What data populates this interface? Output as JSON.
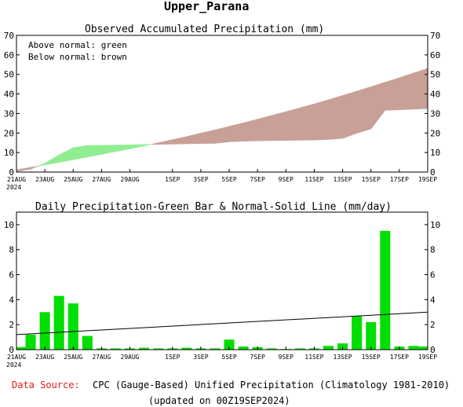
{
  "page": {
    "title": "Upper_Parana",
    "footer_source_label": "Data Source:",
    "footer_source_text": "CPC (Gauge-Based) Unified Precipitation (Climatology 1981-2010)",
    "footer_updated": "(updated on 00Z19SEP2024)"
  },
  "colors": {
    "above_normal": "#90ee90",
    "below_normal": "#c8a097",
    "bar": "#00dd00",
    "footer_label": "#e21b1b"
  },
  "chart_data": [
    {
      "type": "area",
      "title": "Observed Accumulated Precipitation (mm)",
      "legend": [
        "Above normal: green",
        "Below normal: brown"
      ],
      "legend_placement": "top-left",
      "x_tick_labels": [
        "21AUG",
        "23AUG",
        "25AUG",
        "27AUG",
        "29AUG",
        "1SEP",
        "3SEP",
        "5SEP",
        "7SEP",
        "9SEP",
        "11SEP",
        "13SEP",
        "15SEP",
        "17SEP",
        "19SEP"
      ],
      "x_tick_days": [
        0,
        2,
        4,
        6,
        8,
        11,
        13,
        15,
        17,
        19,
        21,
        23,
        25,
        27,
        29
      ],
      "year_label": "2024",
      "xlim": [
        0,
        29
      ],
      "ylim": [
        0,
        70
      ],
      "yticks": [
        0,
        10,
        20,
        30,
        40,
        50,
        60,
        70
      ],
      "series": [
        {
          "name": "observed",
          "x": [
            0,
            1,
            2,
            3,
            4,
            5,
            6,
            7,
            8,
            9,
            10,
            11,
            12,
            13,
            14,
            15,
            16,
            17,
            18,
            19,
            20,
            21,
            22,
            23,
            24,
            25,
            26,
            27,
            28,
            29
          ],
          "values": [
            0.3,
            1.5,
            4.5,
            8.8,
            12.5,
            13.6,
            13.7,
            13.8,
            13.9,
            14.1,
            14.2,
            14.3,
            14.5,
            14.6,
            14.7,
            15.5,
            15.8,
            16.0,
            16.1,
            16.2,
            16.3,
            16.4,
            16.7,
            17.2,
            19.9,
            22.1,
            31.6,
            31.9,
            32.2,
            32.5
          ]
        },
        {
          "name": "normal",
          "x": [
            0,
            1,
            2,
            3,
            4,
            5,
            6,
            7,
            8,
            9,
            10,
            11,
            12,
            13,
            14,
            15,
            16,
            17,
            18,
            19,
            20,
            21,
            22,
            23,
            24,
            25,
            26,
            27,
            28,
            29
          ],
          "values": [
            1.2,
            2.4,
            3.7,
            5.0,
            6.3,
            7.7,
            9.1,
            10.5,
            11.9,
            13.4,
            15.0,
            16.6,
            18.2,
            19.9,
            21.6,
            23.4,
            25.2,
            27.1,
            29.0,
            30.9,
            32.9,
            34.9,
            37.0,
            39.2,
            41.4,
            43.7,
            46.0,
            48.3,
            50.7,
            53.1
          ]
        }
      ]
    },
    {
      "type": "bar",
      "title": "Daily Precipitation-Green Bar & Normal-Solid Line (mm/day)",
      "x_tick_labels": [
        "21AUG",
        "23AUG",
        "25AUG",
        "27AUG",
        "29AUG",
        "1SEP",
        "3SEP",
        "5SEP",
        "7SEP",
        "9SEP",
        "11SEP",
        "13SEP",
        "15SEP",
        "17SEP",
        "19SEP"
      ],
      "x_tick_days": [
        0,
        2,
        4,
        6,
        8,
        11,
        13,
        15,
        17,
        19,
        21,
        23,
        25,
        27,
        29
      ],
      "year_label": "2024",
      "xlim": [
        0,
        29
      ],
      "ylim": [
        0,
        11
      ],
      "yticks": [
        0,
        2,
        4,
        6,
        8,
        10
      ],
      "series": [
        {
          "name": "daily",
          "x": [
            0,
            1,
            2,
            3,
            4,
            5,
            6,
            7,
            8,
            9,
            10,
            11,
            12,
            13,
            14,
            15,
            16,
            17,
            18,
            19,
            20,
            21,
            22,
            23,
            24,
            25,
            26,
            27,
            28,
            29
          ],
          "values": [
            0.2,
            1.2,
            3.0,
            4.3,
            3.7,
            1.1,
            0.1,
            0.1,
            0.1,
            0.15,
            0.1,
            0.1,
            0.15,
            0.1,
            0.1,
            0.8,
            0.25,
            0.2,
            0.1,
            0.05,
            0.1,
            0.1,
            0.3,
            0.5,
            2.7,
            2.2,
            9.5,
            0.25,
            0.3,
            0.25
          ]
        },
        {
          "name": "normal",
          "x": [
            0,
            29
          ],
          "values": [
            1.2,
            3.0
          ]
        }
      ]
    }
  ]
}
